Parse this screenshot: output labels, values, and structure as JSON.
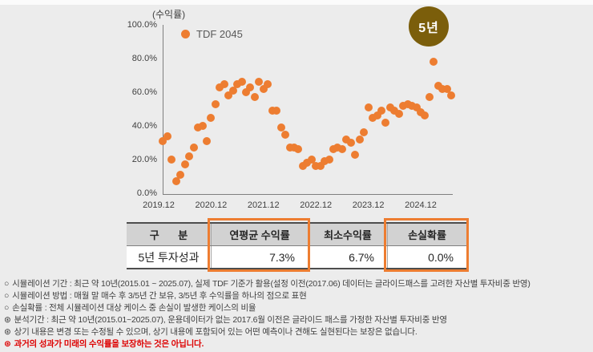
{
  "page": {
    "background": "#ECECEC"
  },
  "chart": {
    "y_axis_title": "(수익률)",
    "legend_label": "TDF 2045",
    "badge_label": "5년",
    "badge_color": "#7B5E0B",
    "point_color": "#ED7D31"
  },
  "chart_data": {
    "type": "scatter",
    "title": "",
    "ylabel": "(수익률)",
    "y_unit": "%",
    "ylim": [
      0,
      100
    ],
    "grid": false,
    "legend_position": "top-left-inside",
    "annotation_badge": "5년",
    "x_tick_labels": [
      "2019.12",
      "2020.12",
      "2021.12",
      "2022.12",
      "2023.12",
      "2024.12"
    ],
    "y_tick_labels": [
      "100.0%",
      "80.0%",
      "60.0%",
      "40.0%",
      "20.0%",
      "0.0%"
    ],
    "series": [
      {
        "name": "TDF 2045",
        "x": [
          "2020.01",
          "2020.02",
          "2020.03",
          "2020.04",
          "2020.05",
          "2020.06",
          "2020.07",
          "2020.08",
          "2020.09",
          "2020.10",
          "2020.11",
          "2020.12",
          "2021.01",
          "2021.02",
          "2021.03",
          "2021.04",
          "2021.05",
          "2021.06",
          "2021.07",
          "2021.08",
          "2021.09",
          "2021.10",
          "2021.11",
          "2021.12",
          "2022.01",
          "2022.02",
          "2022.03",
          "2022.04",
          "2022.05",
          "2022.06",
          "2022.07",
          "2022.08",
          "2022.09",
          "2022.10",
          "2022.11",
          "2022.12",
          "2023.01",
          "2023.02",
          "2023.03",
          "2023.04",
          "2023.05",
          "2023.06",
          "2023.07",
          "2023.08",
          "2023.09",
          "2023.10",
          "2023.11",
          "2023.12",
          "2024.01",
          "2024.02",
          "2024.03",
          "2024.04",
          "2024.05",
          "2024.06",
          "2024.07",
          "2024.08",
          "2024.09",
          "2024.10",
          "2024.11",
          "2024.12",
          "2025.01",
          "2025.02",
          "2025.03",
          "2025.04",
          "2025.05",
          "2025.06",
          "2025.07"
        ],
        "y": [
          31,
          34,
          20,
          7,
          11,
          17,
          22,
          27,
          39,
          40,
          31,
          45,
          53,
          63,
          65,
          58,
          61,
          65,
          66,
          60,
          63,
          57,
          66,
          62,
          65,
          49,
          49,
          39,
          35,
          27,
          27,
          26,
          16,
          18,
          20,
          16,
          16,
          19,
          20,
          26,
          27,
          26,
          32,
          30,
          23,
          32,
          36,
          51,
          45,
          46,
          49,
          42,
          51,
          49,
          47,
          52,
          53,
          52,
          51,
          48,
          46,
          57,
          78,
          64,
          62,
          62,
          58
        ]
      }
    ]
  },
  "table": {
    "headers": [
      "구 분",
      "연평균 수익률",
      "최소수익률",
      "손실확률"
    ],
    "rows": [
      [
        "5년 투자성과",
        "7.3%",
        "6.7%",
        "0.0%"
      ]
    ],
    "highlighted_columns": [
      "연평균 수익률",
      "손실확률"
    ],
    "highlight_color": "#ED7D31"
  },
  "footnotes": [
    {
      "bullet": "○",
      "text": "시뮬레이션 기간 : 최근 약 10년(2015.01 ~ 2025.07), 실제 TDF 기준가 활용(설정 이전(2017.06) 데이터는 글라이드패스를 고려한 자산별 투자비중 반영)",
      "color": "#404040",
      "emphasis": false
    },
    {
      "bullet": "○",
      "text": "시뮬레이션 방법 : 매월 말 매수 후 3/5년 간 보유, 3/5년 후 수익률을 하나의 점으로 표현",
      "color": "#404040",
      "emphasis": false
    },
    {
      "bullet": "○",
      "text": "손실확률 : 전체 시뮬레이션 대상 케이스 중 손실이 발생한 케이스의 비율",
      "color": "#404040",
      "emphasis": false
    },
    {
      "bullet": "⊛",
      "text": "분석기간 : 최근 약 10년(2015.01~2025.07), 운용데이터가 없는 2017.6월 이전은 글라이드 패스를 가정한 자산별 투자비중 반영",
      "color": "#404040",
      "emphasis": false
    },
    {
      "bullet": "⊛",
      "text": "상기 내용은 변경 또는 수정될 수 있으며, 상기 내용에 포함되어 있는 어떤 예측이나 견해도 실현된다는 보장은 없습니다.",
      "color": "#404040",
      "emphasis": false
    },
    {
      "bullet": "⊛",
      "text": "과거의 성과가 미래의 수익률을 보장하는 것은 아닙니다.",
      "color": "#DD0000",
      "emphasis": true
    }
  ]
}
